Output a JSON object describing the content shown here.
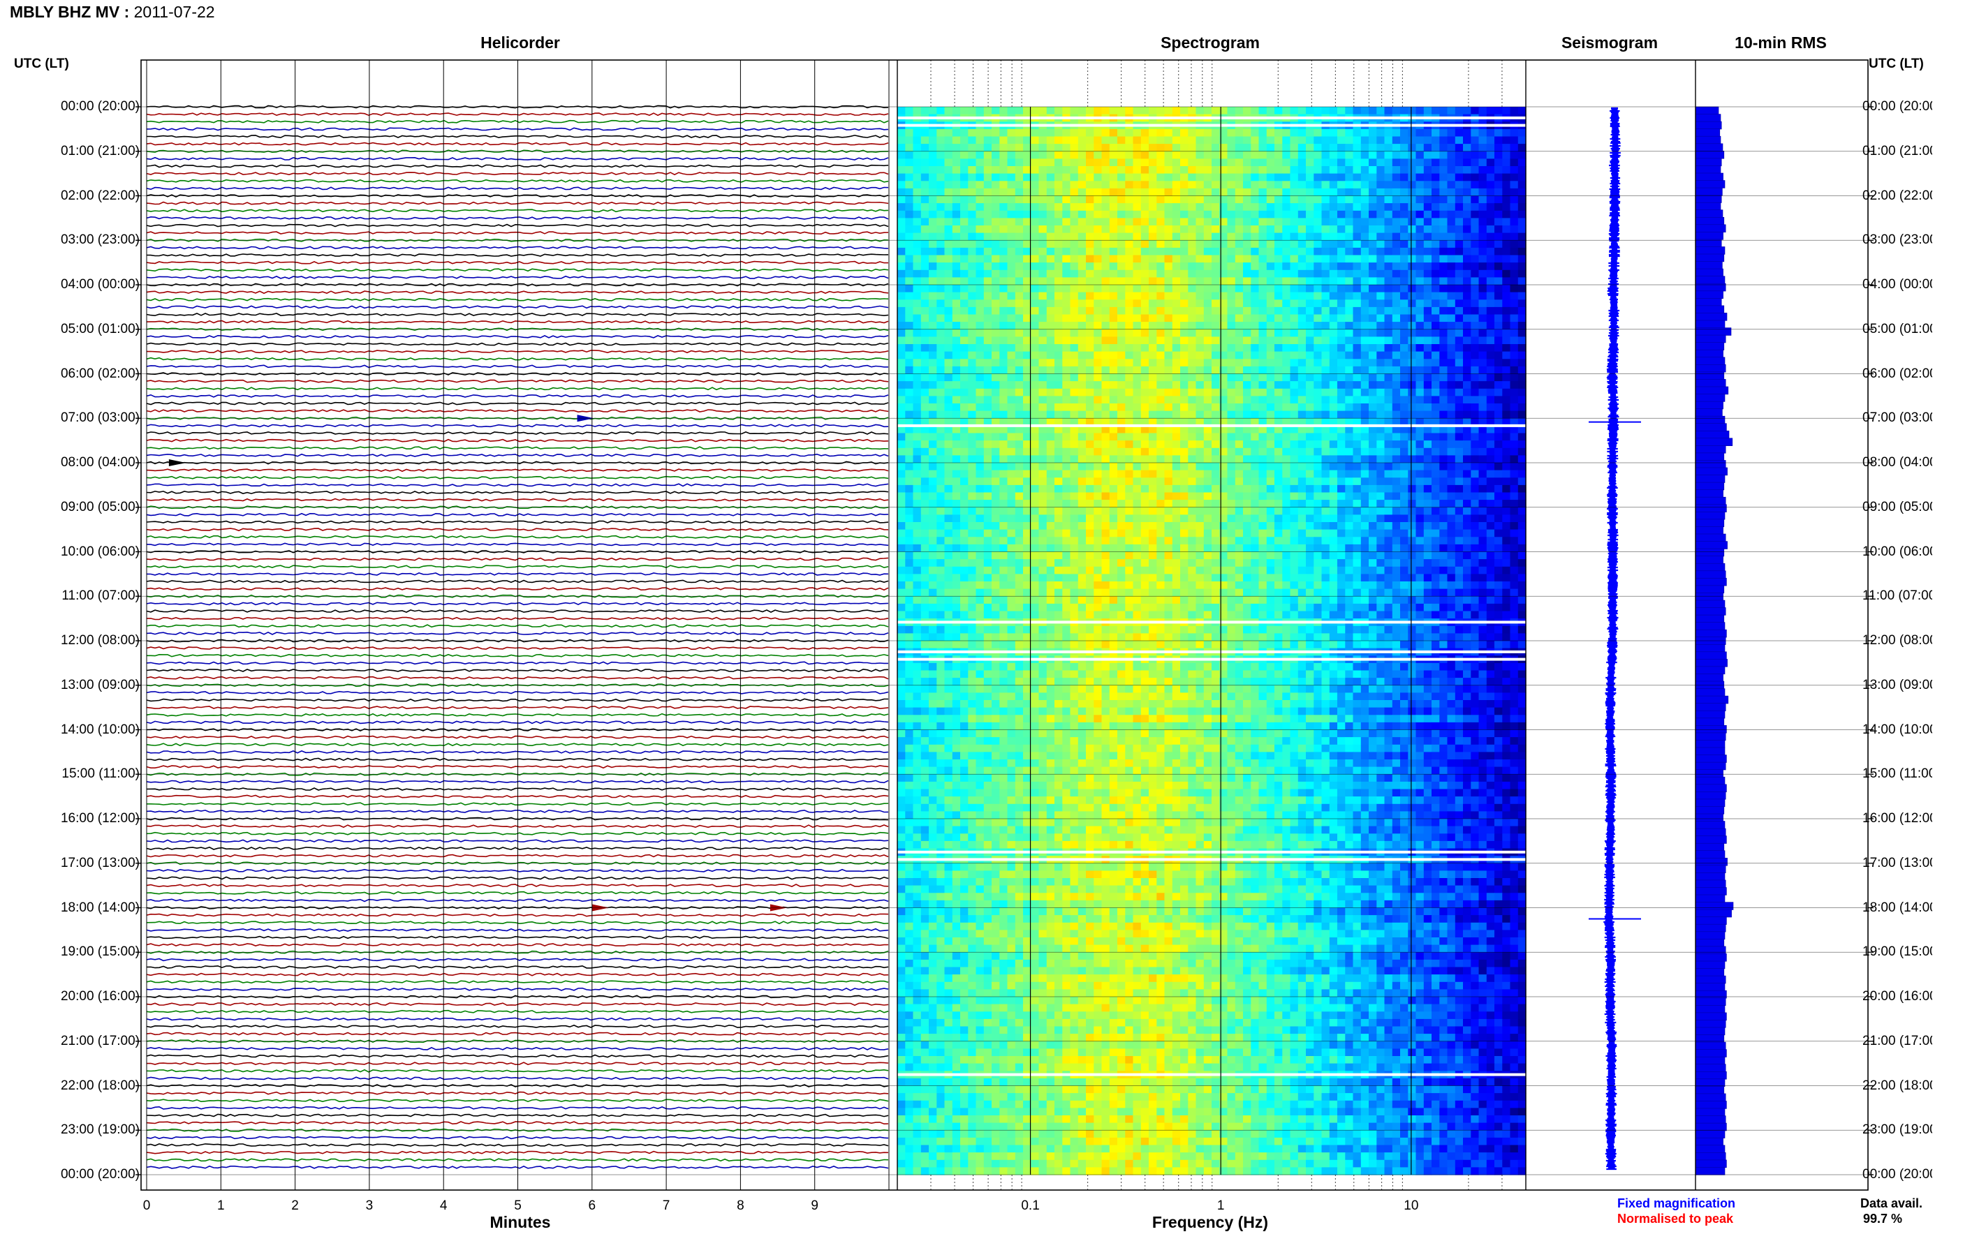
{
  "header": {
    "station": "MBLY BHZ MV :",
    "date": "2011-07-22"
  },
  "panels": {
    "helicorder": "Helicorder",
    "spectrogram": "Spectrogram",
    "seismogram": "Seismogram",
    "rms": "10-min RMS"
  },
  "axis": {
    "left_corner": "UTC (LT)",
    "right_corner": "UTC (LT)",
    "minutes_title": "Minutes",
    "frequency_title": "Frequency (Hz)"
  },
  "footer": {
    "fixed_magnification": "Fixed magnification",
    "normalised_to_peak": "Normalised to peak",
    "data_avail_label": "Data avail.",
    "data_avail_value": "99.7 %"
  },
  "colors": {
    "trace_cycle": [
      "#000000",
      "#a00000",
      "#008000",
      "#0000b4"
    ],
    "fixed_magnification": "#0000ff",
    "normalised_to_peak": "#ff0000",
    "rms_bar": "#0000ee",
    "seismogram": "#0000ff"
  },
  "chart_data": [
    {
      "type": "line",
      "name": "helicorder",
      "title": "Helicorder",
      "xlabel": "Minutes",
      "x_ticks": [
        "0",
        "1",
        "2",
        "3",
        "4",
        "5",
        "6",
        "7",
        "8",
        "9"
      ],
      "xlim": [
        0,
        10
      ],
      "time_labels_left": [
        "00:00 (20:00)",
        "01:00 (21:00)",
        "02:00 (22:00)",
        "03:00 (23:00)",
        "04:00 (00:00)",
        "05:00 (01:00)",
        "06:00 (02:00)",
        "07:00 (03:00)",
        "08:00 (04:00)",
        "09:00 (05:00)",
        "10:00 (06:00)",
        "11:00 (07:00)",
        "12:00 (08:00)",
        "13:00 (09:00)",
        "14:00 (10:00)",
        "15:00 (11:00)",
        "16:00 (12:00)",
        "17:00 (13:00)",
        "18:00 (14:00)",
        "19:00 (15:00)",
        "20:00 (16:00)",
        "21:00 (17:00)",
        "22:00 (18:00)",
        "23:00 (19:00)",
        "00:00 (20:00)"
      ],
      "lines_per_hour": 6,
      "events": [
        {
          "time": "07:00",
          "minute": 5.8,
          "color": "#0000b4"
        },
        {
          "time": "08:00",
          "minute": 0.3,
          "color": "#000000"
        },
        {
          "time": "18:00",
          "minute": 8.4,
          "color": "#a00000"
        },
        {
          "time": "18:00",
          "minute": 6.0,
          "color": "#a00000"
        }
      ]
    },
    {
      "type": "heatmap",
      "name": "spectrogram",
      "title": "Spectrogram",
      "xlabel": "Frequency (Hz)",
      "x_scale": "log",
      "xlim": [
        0.02,
        40
      ],
      "x_ticks": [
        "0.1",
        "1",
        "10"
      ],
      "colormap": "jet",
      "peak_band_hz": [
        0.2,
        0.5
      ],
      "gaps_utc": [
        "00:15",
        "00:25",
        "07:10",
        "11:35",
        "12:15",
        "12:25",
        "16:45",
        "16:55",
        "21:45"
      ]
    },
    {
      "type": "line",
      "name": "seismogram",
      "title": "Seismogram",
      "events_utc": [
        "07:05",
        "18:15"
      ]
    },
    {
      "type": "bar",
      "name": "10-min RMS",
      "title": "10-min RMS",
      "orientation": "horizontal",
      "bins_per_hour": 6,
      "relative_values": [
        0.55,
        0.6,
        0.62,
        0.58,
        0.6,
        0.65,
        0.68,
        0.62,
        0.6,
        0.66,
        0.7,
        0.64,
        0.62,
        0.6,
        0.65,
        0.68,
        0.72,
        0.66,
        0.62,
        0.7,
        0.68,
        0.64,
        0.66,
        0.7,
        0.72,
        0.66,
        0.62,
        0.68,
        0.75,
        0.7,
        0.85,
        0.72,
        0.68,
        0.66,
        0.7,
        0.72,
        0.68,
        0.72,
        0.78,
        0.7,
        0.66,
        0.64,
        0.7,
        0.74,
        0.8,
        0.88,
        0.72,
        0.68,
        0.72,
        0.76,
        0.7,
        0.68,
        0.66,
        0.72,
        0.74,
        0.7,
        0.68,
        0.66,
        0.72,
        0.76,
        0.68,
        0.66,
        0.7,
        0.72,
        0.74,
        0.68,
        0.66,
        0.7,
        0.72,
        0.68,
        0.7,
        0.74,
        0.72,
        0.7,
        0.74,
        0.76,
        0.7,
        0.66,
        0.68,
        0.7,
        0.78,
        0.72,
        0.7,
        0.68,
        0.74,
        0.72,
        0.7,
        0.7,
        0.74,
        0.72,
        0.66,
        0.7,
        0.74,
        0.72,
        0.7,
        0.68,
        0.66,
        0.7,
        0.72,
        0.74,
        0.68,
        0.7,
        0.76,
        0.72,
        0.7,
        0.72,
        0.74,
        0.7,
        0.9,
        0.86,
        0.74,
        0.72,
        0.7,
        0.68,
        0.72,
        0.74,
        0.7,
        0.68,
        0.72,
        0.7,
        0.74,
        0.72,
        0.7,
        0.74,
        0.72,
        0.7,
        0.68,
        0.72,
        0.74,
        0.7,
        0.72,
        0.74,
        0.7,
        0.68,
        0.72,
        0.74,
        0.7,
        0.72,
        0.74,
        0.7,
        0.66,
        0.7,
        0.72,
        0.74,
        0.7
      ]
    }
  ]
}
